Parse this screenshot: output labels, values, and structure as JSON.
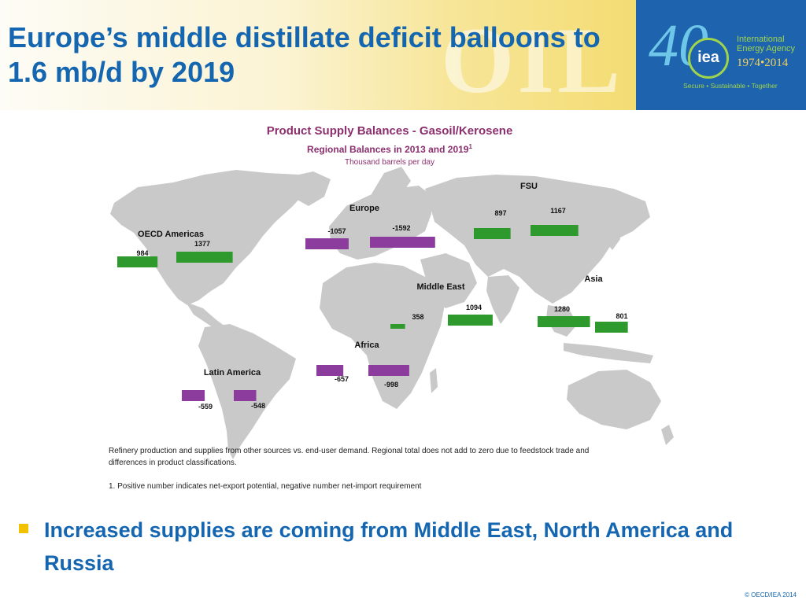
{
  "slide": {
    "title": "Europe’s middle distillate deficit balloons to 1.6 mb/d by 2019",
    "bullet": "Increased supplies are coming from Middle East, North America and Russia",
    "copyright": "© OECD/IEA 2014"
  },
  "banner": {
    "background_word": "OIL",
    "logo_number": "40",
    "logo_mark": "iea",
    "logo_org_line1": "International",
    "logo_org_line2": "Energy Agency",
    "logo_years": "1974•2014",
    "logo_tagline": "Secure • Sustainable • Together"
  },
  "chart_data": {
    "type": "bar",
    "title": "Product Supply Balances - Gasoil/Kerosene",
    "subtitle": "Regional Balances in 2013 and 2019",
    "subtitle_note_marker": "1",
    "units": "Thousand barrels per day",
    "series_years": [
      "2013",
      "2019"
    ],
    "positive_color": "#2e9a2e",
    "negative_color": "#8c3c9c",
    "regions": [
      {
        "label": "OECD Americas",
        "values": [
          984,
          1377
        ]
      },
      {
        "label": "Europe",
        "values": [
          -1057,
          -1592
        ]
      },
      {
        "label": "FSU",
        "values": [
          897,
          1167
        ]
      },
      {
        "label": "Middle East",
        "values": [
          358,
          1094
        ]
      },
      {
        "label": "Asia",
        "values": [
          1280,
          801
        ]
      },
      {
        "label": "Africa",
        "values": [
          -657,
          -998
        ]
      },
      {
        "label": "Latin America",
        "values": [
          -559,
          -548
        ]
      }
    ],
    "footnotes": [
      "Refinery production and supplies from other sources vs. end-user demand. Regional total does not add to zero due to feedstock trade and differences in product classifications.",
      "1. Positive number indicates net-export potential, negative number net-import requirement"
    ]
  }
}
